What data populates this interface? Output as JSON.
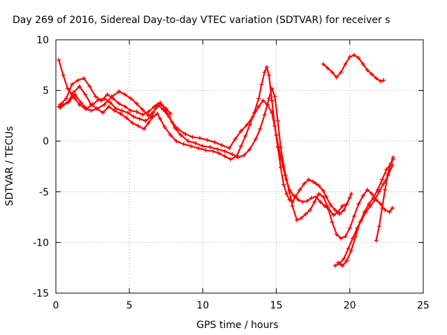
{
  "chart_data": {
    "type": "scatter",
    "title": "Day 269 of 2016, Sidereal Day-to-day VTEC variation (SDTVAR) for receiver s",
    "xlabel": "GPS time / hours",
    "ylabel": "SDTVAR / TECUs",
    "xlim": [
      0,
      25
    ],
    "ylim": [
      -15,
      10
    ],
    "x_ticks": [
      "0",
      "5",
      "10",
      "15",
      "20",
      "25"
    ],
    "y_ticks": [
      "-15",
      "-10",
      "-5",
      "0",
      "5",
      "10"
    ],
    "grid": true,
    "marker": "plus",
    "color": "#ff0000",
    "series": [
      {
        "x": [
          0.2,
          0.5,
          0.8,
          1.1,
          1.3,
          1.6,
          2.0,
          2.4,
          2.8,
          3.2,
          3.6,
          4.0,
          4.4,
          4.8,
          5.2,
          5.6,
          6.0,
          6.3,
          6.6,
          6.9,
          7.1,
          7.4,
          7.8,
          8.2,
          8.7,
          9.2,
          9.7,
          10.2,
          10.7,
          11.1,
          11.5,
          11.9,
          12.3,
          12.6,
          12.9,
          13.2,
          13.5,
          13.8,
          14.0,
          14.2,
          14.35,
          14.5,
          14.7,
          14.9,
          15.1,
          15.3,
          15.5,
          15.7,
          15.9,
          16.1,
          16.3,
          16.6,
          16.9,
          17.2,
          17.5,
          17.7,
          17.9,
          18.2,
          18.4,
          18.7,
          19.0,
          19.3,
          19.6,
          19.8,
          20.0
        ],
        "y": [
          8.0,
          6.5,
          5.2,
          4.6,
          4.2,
          3.6,
          3.2,
          3.0,
          3.2,
          2.8,
          3.4,
          3.0,
          2.7,
          2.3,
          1.8,
          1.5,
          1.2,
          1.8,
          2.4,
          2.7,
          2.2,
          1.4,
          0.6,
          0.0,
          -0.3,
          -0.5,
          -0.7,
          -0.9,
          -1.0,
          -1.2,
          -1.5,
          -1.8,
          -1.5,
          -0.5,
          0.5,
          1.6,
          2.8,
          4.2,
          5.6,
          6.8,
          7.3,
          6.5,
          4.0,
          1.5,
          -0.6,
          -2.6,
          -4.3,
          -5.2,
          -5.8,
          -6.0,
          -5.5,
          -4.8,
          -4.2,
          -3.8,
          -4.0,
          -4.2,
          -4.4,
          -4.9,
          -5.5,
          -6.3,
          -6.8,
          -7.2,
          -6.8,
          -6.2,
          -5.6
        ]
      },
      {
        "x": [
          0.2,
          0.5,
          0.9,
          1.3,
          1.7,
          2.1,
          2.5,
          2.9,
          3.3,
          3.7,
          4.1,
          4.5,
          4.9,
          5.3,
          5.7,
          6.1,
          6.5,
          6.9,
          7.3,
          7.7,
          8.1,
          8.5,
          9.0,
          9.5,
          10.0,
          10.5,
          11.0,
          11.5,
          12.0,
          12.4,
          12.8,
          13.2,
          13.6,
          13.9,
          14.2,
          14.5,
          14.7,
          14.9,
          15.1,
          15.3,
          15.5,
          15.7,
          15.9,
          16.2,
          16.5,
          16.8,
          17.1,
          17.4,
          17.7,
          18.0,
          18.3,
          18.6,
          18.9,
          19.2,
          19.5,
          19.8,
          20.1
        ],
        "y": [
          3.4,
          3.6,
          3.9,
          4.6,
          3.8,
          3.2,
          3.6,
          4.1,
          4.2,
          3.8,
          3.2,
          3.0,
          2.8,
          2.4,
          2.2,
          2.0,
          2.4,
          3.6,
          3.1,
          2.4,
          1.3,
          0.6,
          0.0,
          -0.2,
          -0.5,
          -0.6,
          -0.8,
          -1.0,
          -1.3,
          -1.6,
          -1.4,
          -0.8,
          0.2,
          1.2,
          2.6,
          4.2,
          5.2,
          4.4,
          2.0,
          -0.6,
          -2.4,
          -3.8,
          -4.8,
          -5.4,
          -5.8,
          -6.0,
          -5.9,
          -5.6,
          -5.5,
          -6.0,
          -6.4,
          -6.8,
          -7.3,
          -7.0,
          -6.4,
          -6.2,
          -5.2
        ]
      },
      {
        "x": [
          0.3,
          0.7,
          1.1,
          1.5,
          1.9,
          2.3,
          2.7,
          3.1,
          3.5,
          3.9,
          4.3,
          4.7,
          5.1,
          5.5,
          5.9,
          6.3,
          6.7,
          7.1,
          7.5,
          7.9,
          8.3,
          8.8,
          9.3,
          9.8,
          10.3,
          10.8,
          11.3,
          11.8,
          12.2,
          12.6,
          13.0,
          13.4,
          13.8,
          14.1,
          14.4,
          14.7,
          15.0,
          15.3,
          15.6,
          15.9,
          16.1,
          16.4,
          16.7,
          17.0,
          17.3,
          17.6,
          17.9,
          18.2,
          18.5,
          18.8,
          19.1,
          19.4,
          19.7,
          20.0,
          20.3,
          20.6,
          20.9,
          21.2,
          21.5,
          21.8,
          22.1,
          22.4,
          22.7,
          22.9
        ],
        "y": [
          3.6,
          4.2,
          5.6,
          6.0,
          6.2,
          5.4,
          4.4,
          4.0,
          4.6,
          4.2,
          3.7,
          3.4,
          3.0,
          2.9,
          2.6,
          2.9,
          3.4,
          3.8,
          3.0,
          1.9,
          1.2,
          0.7,
          0.4,
          0.3,
          0.1,
          -0.1,
          -0.4,
          -0.7,
          0.2,
          1.0,
          1.6,
          2.4,
          3.4,
          4.0,
          3.6,
          2.8,
          0.6,
          -1.6,
          -3.4,
          -5.0,
          -6.4,
          -7.8,
          -7.6,
          -7.2,
          -6.8,
          -6.0,
          -5.2,
          -5.5,
          -6.5,
          -8.0,
          -9.2,
          -9.6,
          -9.4,
          -8.6,
          -7.4,
          -6.2,
          -5.4,
          -4.8,
          -5.2,
          -5.8,
          -6.2,
          -6.8,
          -7.0,
          -6.6
        ]
      },
      {
        "x": [
          0.3,
          0.8,
          1.2,
          1.6,
          2.0,
          2.4,
          2.8,
          3.3,
          3.8,
          4.3,
          4.7,
          5.1,
          5.5,
          5.9,
          6.3,
          6.6,
          6.9,
          7.2,
          7.5,
          7.8
        ],
        "y": [
          3.3,
          3.8,
          4.8,
          5.4,
          4.6,
          3.6,
          3.2,
          3.6,
          4.4,
          4.9,
          4.6,
          4.2,
          3.7,
          3.1,
          2.5,
          2.8,
          3.4,
          3.6,
          3.2,
          2.7
        ]
      },
      {
        "x": [
          18.2,
          18.5,
          18.8,
          19.1,
          19.4,
          19.7,
          20.0,
          20.3,
          20.6,
          20.9,
          21.2,
          21.5,
          21.8,
          22.1,
          22.3
        ],
        "y": [
          7.6,
          7.2,
          6.8,
          6.3,
          6.8,
          7.6,
          8.3,
          8.5,
          8.2,
          7.6,
          7.0,
          6.6,
          6.2,
          5.9,
          6.0
        ]
      },
      {
        "x": [
          19.2,
          19.5,
          19.8,
          20.1,
          20.4,
          20.7,
          21.0,
          21.3,
          21.6,
          21.9,
          22.2,
          22.5,
          22.8,
          22.95
        ],
        "y": [
          -12.0,
          -12.3,
          -11.8,
          -10.8,
          -9.4,
          -8.0,
          -7.0,
          -6.2,
          -5.6,
          -4.8,
          -3.8,
          -2.8,
          -2.2,
          -1.8
        ]
      },
      {
        "x": [
          19.0,
          19.3,
          19.6,
          19.9,
          20.2,
          20.5,
          20.8,
          21.1,
          21.4,
          21.7,
          22.0,
          22.3,
          22.6,
          22.9
        ],
        "y": [
          -12.3,
          -12.1,
          -11.6,
          -10.6,
          -9.6,
          -8.6,
          -7.8,
          -7.0,
          -6.4,
          -5.8,
          -5.0,
          -4.2,
          -3.4,
          -2.4
        ]
      },
      {
        "x": [
          21.8,
          22.0,
          22.2,
          22.4,
          22.6,
          22.8,
          22.95
        ],
        "y": [
          -9.8,
          -8.4,
          -6.6,
          -4.8,
          -3.2,
          -2.2,
          -1.6
        ]
      }
    ]
  }
}
